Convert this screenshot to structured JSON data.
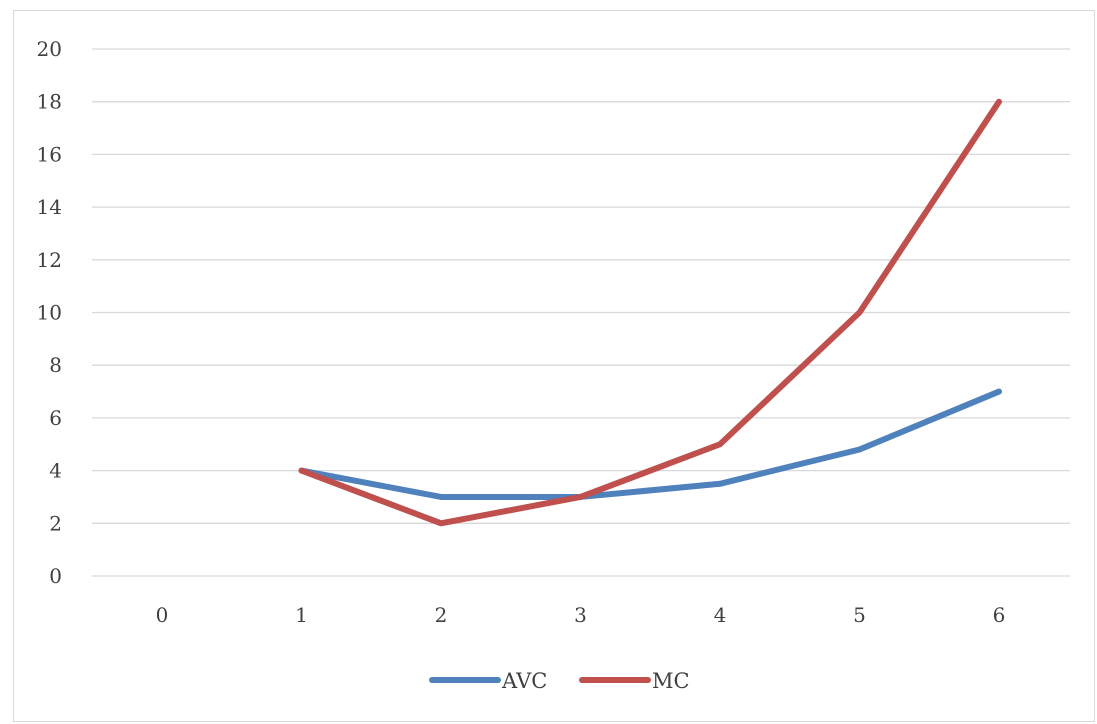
{
  "chart_data": {
    "type": "line",
    "title": "",
    "xlabel": "",
    "ylabel": "",
    "categories": [
      "0",
      "1",
      "2",
      "3",
      "4",
      "5",
      "6"
    ],
    "x": [
      0,
      1,
      2,
      3,
      4,
      5,
      6
    ],
    "ylim": [
      0,
      20
    ],
    "yticks": [
      0,
      2,
      4,
      6,
      8,
      10,
      12,
      14,
      16,
      18,
      20
    ],
    "grid": "horizontal",
    "legend": "bottom",
    "series": [
      {
        "name": "AVC",
        "color": "#4f81bd",
        "values": [
          null,
          4,
          3,
          3,
          3.5,
          4.8,
          7
        ]
      },
      {
        "name": "MC",
        "color": "#c0504d",
        "values": [
          null,
          4,
          2,
          3,
          5,
          10,
          18
        ]
      }
    ]
  }
}
